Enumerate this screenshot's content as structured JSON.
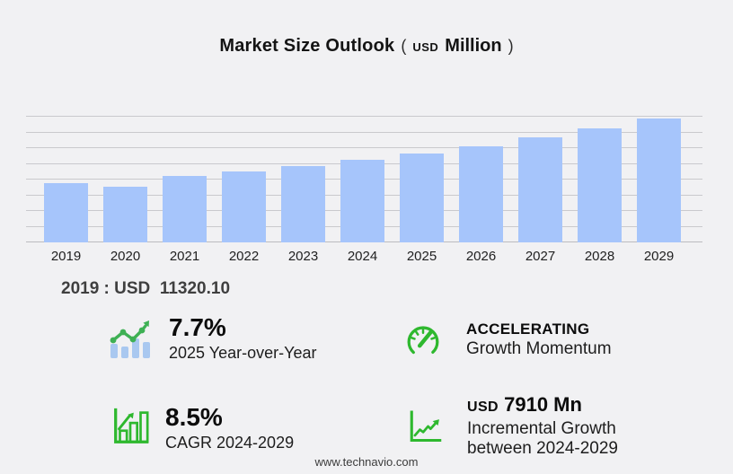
{
  "title": {
    "main": "Market Size Outlook",
    "open_paren": "(",
    "currency": "USD",
    "unit": "Million",
    "close_paren": ")"
  },
  "chart_data": {
    "type": "bar",
    "title": "Market Size Outlook (USD Million)",
    "categories": [
      "2019",
      "2020",
      "2021",
      "2022",
      "2023",
      "2024",
      "2025",
      "2026",
      "2027",
      "2028",
      "2029"
    ],
    "values": [
      11320.1,
      10650,
      12700,
      13600,
      14650,
      15800,
      17020,
      18400,
      20000,
      21750,
      23710
    ],
    "xlabel": "",
    "ylabel": "USD Million",
    "ylim": [
      0,
      24000
    ],
    "gridline_step": 3000,
    "grid": true,
    "legend": false,
    "bar_color": "#a6c5fb"
  },
  "annotation": {
    "text": "2019 : USD  11320.10"
  },
  "stats": [
    {
      "icon": "bar-trend-up-icon",
      "value": "7.7%",
      "lines": [
        "2025 Year-over-Year"
      ]
    },
    {
      "icon": "speedometer-icon",
      "value": "ACCELERATING",
      "lines": [
        "Growth Momentum"
      ]
    },
    {
      "icon": "bar-chart-growth-icon",
      "value": "8.5%",
      "lines": [
        "CAGR 2024-2029"
      ]
    },
    {
      "icon": "line-growth-icon",
      "value_prefix": "USD",
      "value": "7910 Mn",
      "lines": [
        "Incremental Growth",
        "between 2024-2029"
      ]
    }
  ],
  "footer": {
    "url": "www.technavio.com"
  },
  "colors": {
    "background": "#f1f1f3",
    "bar": "#a6c5fb",
    "gridline": "#c9c9cd",
    "icon_green": "#2eb82e",
    "trend_green": "#3eb054",
    "icon_blue": "#a9c8f0",
    "text_dark": "#141414",
    "text_secondary": "#3f3f3f"
  }
}
